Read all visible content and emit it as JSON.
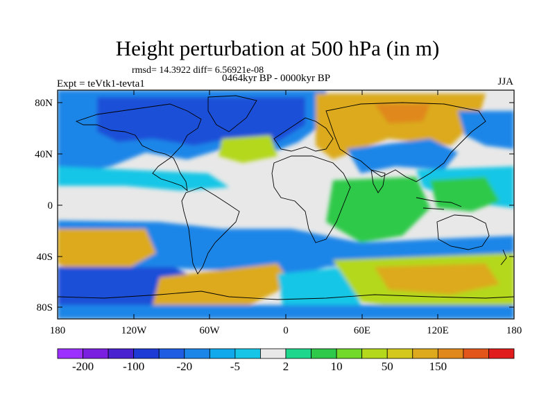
{
  "title": "Height perturbation at 500 hPa (in m)",
  "stats": "rmsd= 14.3922 diff= 6.56921e-08",
  "period": "0464kyr BP - 0000kyr BP",
  "experiment": "Expt = teVtk1-tevta1",
  "season": "JJA",
  "axes": {
    "y_ticks": [
      "80N",
      "40N",
      "0",
      "40S",
      "80S"
    ],
    "x_ticks": [
      "180",
      "120W",
      "60W",
      "0",
      "60E",
      "120E",
      "180"
    ]
  },
  "colorbar": {
    "labels": [
      "-200",
      "-100",
      "-20",
      "-5",
      "2",
      "10",
      "50",
      "150"
    ],
    "colors": [
      "#9b30ff",
      "#7a1fe0",
      "#4a22d0",
      "#1e3bd6",
      "#1f5de3",
      "#1b86e8",
      "#12a8ec",
      "#17c6e6",
      "#e8e8e8",
      "#1ed68c",
      "#2ec94a",
      "#72d82a",
      "#b4d81c",
      "#d4c81c",
      "#dcaa1c",
      "#e0881c",
      "#e2561c",
      "#e01c1c"
    ]
  },
  "field_colors": {
    "background": "#e8e8e8",
    "strong_negative": "#1f4fd8",
    "negative": "#1b86e8",
    "weak_negative": "#17c6e6",
    "weak_positive": "#2ec94a",
    "positive": "#b4d81c",
    "strong_positive": "#dcaa1c",
    "max_positive": "#e0881c"
  }
}
